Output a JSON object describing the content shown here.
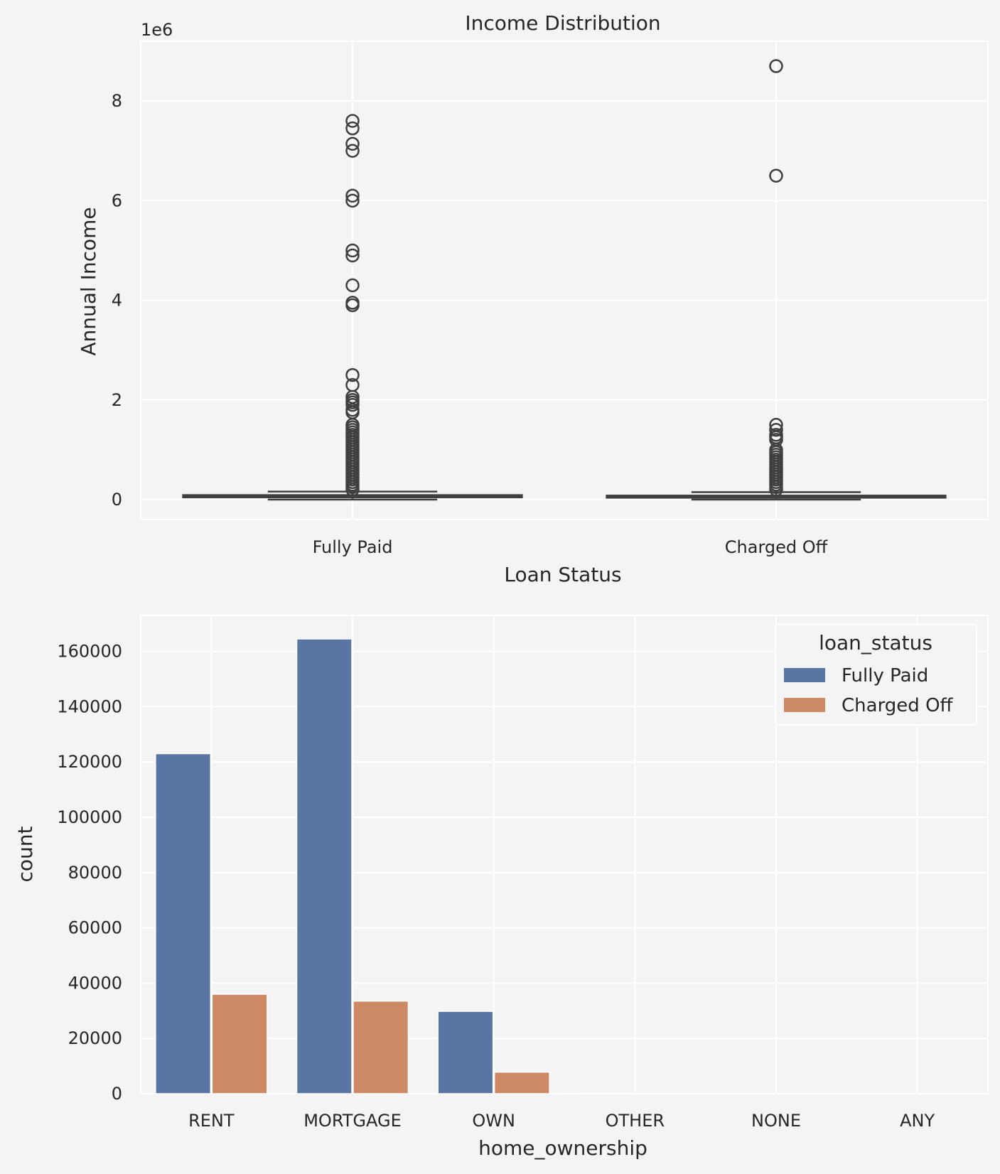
{
  "chart_data": [
    {
      "type": "box",
      "title": "Income Distribution",
      "xlabel": "Loan Status",
      "ylabel": "Annual Income",
      "offset_label": "1e6",
      "categories": [
        "Fully Paid",
        "Charged Off"
      ],
      "ylim": [
        -0.4,
        9.2
      ],
      "yticks": [
        0,
        2,
        4,
        6,
        8
      ],
      "box_color": "#4c72b0",
      "boxes": [
        {
          "name": "Fully Paid",
          "q1": 0.045,
          "median": 0.065,
          "q3": 0.09,
          "whisker_low": 0.0,
          "whisker_high": 0.16,
          "outliers": [
            7.6,
            7.45,
            7.14,
            7.0,
            6.1,
            6.0,
            5.0,
            4.9,
            4.3,
            3.95,
            3.9,
            2.5,
            2.3,
            2.06,
            2.0,
            1.95,
            1.9,
            1.8,
            1.75,
            1.5,
            1.45,
            1.4,
            1.35,
            1.3,
            1.25,
            1.2,
            1.15,
            1.1,
            1.05,
            1.0,
            0.95,
            0.9,
            0.85,
            0.8,
            0.75,
            0.7,
            0.65,
            0.6,
            0.55,
            0.5,
            0.45,
            0.4,
            0.35,
            0.3,
            0.25,
            0.2
          ]
        },
        {
          "name": "Charged Off",
          "q1": 0.04,
          "median": 0.06,
          "q3": 0.08,
          "whisker_low": 0.0,
          "whisker_high": 0.15,
          "outliers": [
            8.7,
            6.5,
            1.5,
            1.4,
            1.3,
            1.25,
            1.2,
            1.0,
            0.95,
            0.9,
            0.85,
            0.8,
            0.75,
            0.7,
            0.65,
            0.6,
            0.55,
            0.5,
            0.45,
            0.4,
            0.35,
            0.3,
            0.25,
            0.2
          ]
        }
      ]
    },
    {
      "type": "bar",
      "xlabel": "home_ownership",
      "ylabel": "count",
      "categories": [
        "RENT",
        "MORTGAGE",
        "OWN",
        "OTHER",
        "NONE",
        "ANY"
      ],
      "ylim": [
        0,
        173000
      ],
      "yticks": [
        0,
        20000,
        40000,
        60000,
        80000,
        100000,
        120000,
        140000,
        160000
      ],
      "legend": {
        "title": "loan_status",
        "position": "upper-right"
      },
      "series": [
        {
          "name": "Fully Paid",
          "color": "#5975a4",
          "values": [
            123000,
            164500,
            29800,
            120,
            25,
            3
          ]
        },
        {
          "name": "Charged Off",
          "color": "#cc8963",
          "values": [
            36000,
            33500,
            7800,
            30,
            6,
            0
          ]
        }
      ]
    }
  ]
}
